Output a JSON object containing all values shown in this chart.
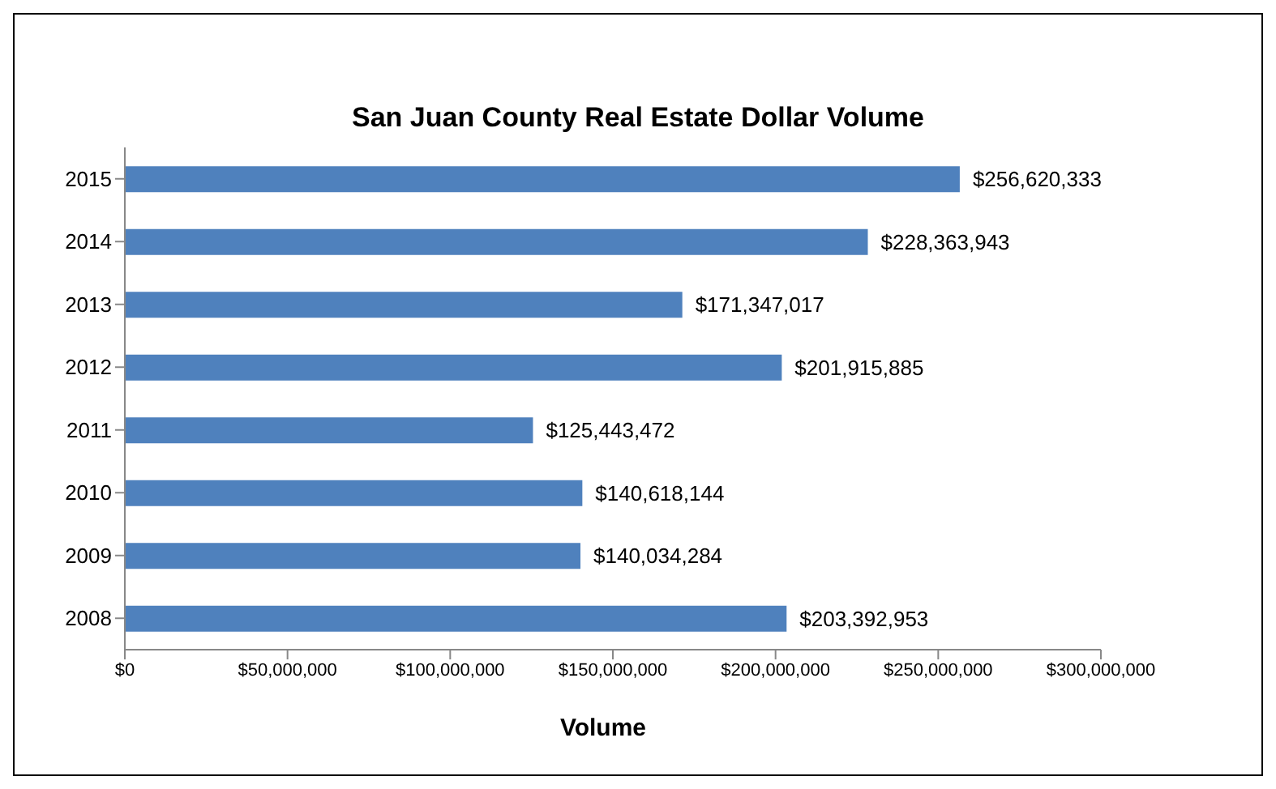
{
  "chart_data": {
    "type": "bar",
    "orientation": "horizontal",
    "title": "San Juan County Real Estate Dollar Volume",
    "xlabel": "Volume",
    "categories": [
      "2015",
      "2014",
      "2013",
      "2012",
      "2011",
      "2010",
      "2009",
      "2008"
    ],
    "values": [
      256620333,
      228363943,
      171347017,
      201915885,
      125443472,
      140618144,
      140034284,
      203392953
    ],
    "value_labels": [
      "$256,620,333",
      "$228,363,943",
      "$171,347,017",
      "$201,915,885",
      "$125,443,472",
      "$140,618,144",
      "$140,034,284",
      "$203,392,953"
    ],
    "color": "#4f81bd",
    "xlim": [
      0,
      300000000
    ],
    "xticks": [
      {
        "value": 0,
        "label": "$0"
      },
      {
        "value": 50000000,
        "label": "$50,000,000"
      },
      {
        "value": 100000000,
        "label": "$100,000,000"
      },
      {
        "value": 150000000,
        "label": "$150,000,000"
      },
      {
        "value": 200000000,
        "label": "$200,000,000"
      },
      {
        "value": 250000000,
        "label": "$250,000,000"
      },
      {
        "value": 300000000,
        "label": "$300,000,000"
      }
    ],
    "grid": false,
    "legend": false
  }
}
